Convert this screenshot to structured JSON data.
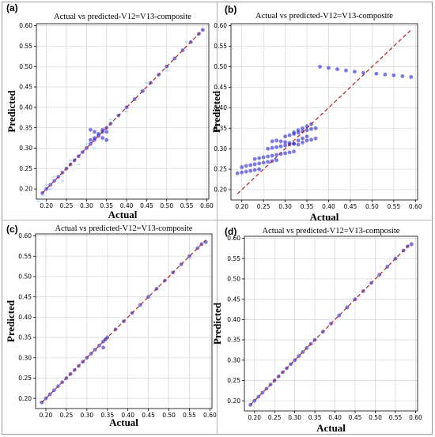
{
  "chart_data": [
    {
      "panel_label": "(a)",
      "type": "scatter",
      "title": "Actual vs predicted-V12=V13-composite",
      "xlabel": "Actual",
      "ylabel": "Predicted",
      "xticks": [
        0.2,
        0.25,
        0.3,
        0.35,
        0.4,
        0.45,
        0.5,
        0.55,
        0.6
      ],
      "yticks": [
        0.2,
        0.25,
        0.3,
        0.35,
        0.4,
        0.45,
        0.5,
        0.55,
        0.6
      ],
      "xlim": [
        0.175,
        0.605
      ],
      "ylim": [
        0.175,
        0.605
      ],
      "grid": true,
      "ideal_line": [
        [
          0.19,
          0.19
        ],
        [
          0.59,
          0.59
        ]
      ],
      "colors": {
        "points": "#2020d8",
        "scatter_light": "#88c8ff",
        "ideal": "#b22222"
      },
      "series": [
        {
          "x": [
            0.19,
            0.2,
            0.21,
            0.22,
            0.23,
            0.24,
            0.25,
            0.26,
            0.27,
            0.28,
            0.29,
            0.3,
            0.31,
            0.32,
            0.33,
            0.34,
            0.35,
            0.36,
            0.38,
            0.4,
            0.42,
            0.44,
            0.46,
            0.48,
            0.5,
            0.52,
            0.54,
            0.56,
            0.58,
            0.59,
            0.31,
            0.32,
            0.33,
            0.34,
            0.35,
            0.35,
            0.34,
            0.32,
            0.31
          ],
          "y": [
            0.19,
            0.2,
            0.21,
            0.22,
            0.23,
            0.24,
            0.25,
            0.26,
            0.27,
            0.28,
            0.29,
            0.3,
            0.31,
            0.32,
            0.33,
            0.34,
            0.35,
            0.36,
            0.38,
            0.4,
            0.42,
            0.44,
            0.46,
            0.48,
            0.5,
            0.52,
            0.54,
            0.56,
            0.58,
            0.59,
            0.345,
            0.34,
            0.335,
            0.325,
            0.32,
            0.34,
            0.345,
            0.325,
            0.32
          ]
        },
        {
          "x": [
            0.18,
            0.19,
            0.2,
            0.21,
            0.22,
            0.24,
            0.26,
            0.28,
            0.3,
            0.32,
            0.36,
            0.4,
            0.45,
            0.5,
            0.55
          ],
          "y": [
            0.17,
            0.185,
            0.21,
            0.2,
            0.23,
            0.22,
            0.27,
            0.26,
            0.31,
            0.3,
            0.37,
            0.39,
            0.46,
            0.49,
            0.56
          ]
        }
      ]
    },
    {
      "panel_label": "(b)",
      "type": "scatter",
      "title": "Actual vs predicted-V12=V13-composite",
      "xlabel": "Actual",
      "ylabel": "Predicted",
      "xticks": [
        0.2,
        0.25,
        0.3,
        0.35,
        0.4,
        0.45,
        0.5,
        0.55,
        0.6
      ],
      "yticks": [
        0.2,
        0.25,
        0.3,
        0.35,
        0.4,
        0.45,
        0.5,
        0.55,
        0.6
      ],
      "xlim": [
        0.175,
        0.605
      ],
      "ylim": [
        0.175,
        0.605
      ],
      "grid": true,
      "ideal_line": [
        [
          0.19,
          0.19
        ],
        [
          0.59,
          0.59
        ]
      ],
      "colors": {
        "points": "#2020d8",
        "ideal": "#b22222"
      },
      "series": [
        {
          "x": [
            0.19,
            0.2,
            0.21,
            0.22,
            0.23,
            0.24,
            0.2,
            0.21,
            0.22,
            0.23,
            0.24,
            0.25,
            0.26,
            0.27,
            0.28,
            0.23,
            0.24,
            0.25,
            0.26,
            0.27,
            0.28,
            0.29,
            0.3,
            0.31,
            0.32,
            0.26,
            0.27,
            0.28,
            0.29,
            0.3,
            0.31,
            0.32,
            0.27,
            0.28,
            0.29,
            0.3,
            0.31,
            0.32,
            0.33,
            0.34,
            0.35,
            0.36,
            0.37,
            0.3,
            0.31,
            0.32,
            0.33,
            0.34,
            0.35,
            0.36,
            0.37,
            0.32,
            0.33,
            0.34,
            0.35,
            0.36,
            0.33,
            0.34,
            0.35,
            0.38,
            0.4,
            0.42,
            0.44,
            0.46,
            0.48,
            0.51,
            0.53,
            0.55,
            0.57,
            0.59
          ],
          "y": [
            0.24,
            0.242,
            0.244,
            0.246,
            0.248,
            0.25,
            0.255,
            0.258,
            0.26,
            0.262,
            0.264,
            0.266,
            0.268,
            0.27,
            0.272,
            0.275,
            0.277,
            0.279,
            0.281,
            0.283,
            0.285,
            0.287,
            0.289,
            0.291,
            0.293,
            0.3,
            0.302,
            0.304,
            0.306,
            0.308,
            0.31,
            0.312,
            0.318,
            0.32,
            0.318,
            0.316,
            0.314,
            0.312,
            0.31,
            0.315,
            0.32,
            0.322,
            0.325,
            0.33,
            0.333,
            0.336,
            0.339,
            0.342,
            0.345,
            0.348,
            0.35,
            0.34,
            0.345,
            0.35,
            0.355,
            0.36,
            0.32,
            0.325,
            0.33,
            0.5,
            0.497,
            0.494,
            0.491,
            0.488,
            0.485,
            0.483,
            0.481,
            0.479,
            0.477,
            0.475
          ]
        }
      ]
    },
    {
      "panel_label": "(c)",
      "type": "scatter",
      "title": "Actual vs predicted-V12=V13-composite",
      "xlabel": "Actual",
      "ylabel": "Predicted",
      "xticks": [
        0.2,
        0.25,
        0.3,
        0.35,
        0.4,
        0.45,
        0.5,
        0.55,
        0.6
      ],
      "yticks": [
        0.2,
        0.25,
        0.3,
        0.35,
        0.4,
        0.45,
        0.5,
        0.55,
        0.6
      ],
      "xlim": [
        0.175,
        0.605
      ],
      "ylim": [
        0.175,
        0.605
      ],
      "grid": true,
      "ideal_line": [
        [
          0.19,
          0.19
        ],
        [
          0.59,
          0.59
        ]
      ],
      "colors": {
        "points": "#2020d8",
        "ideal": "#b22222"
      },
      "series": [
        {
          "x": [
            0.19,
            0.2,
            0.21,
            0.22,
            0.23,
            0.24,
            0.25,
            0.26,
            0.27,
            0.28,
            0.29,
            0.3,
            0.31,
            0.32,
            0.33,
            0.34,
            0.345,
            0.35,
            0.37,
            0.39,
            0.41,
            0.43,
            0.45,
            0.47,
            0.49,
            0.51,
            0.53,
            0.55,
            0.57,
            0.58,
            0.59,
            0.34
          ],
          "y": [
            0.19,
            0.2,
            0.21,
            0.22,
            0.23,
            0.24,
            0.25,
            0.26,
            0.27,
            0.28,
            0.29,
            0.3,
            0.31,
            0.32,
            0.33,
            0.34,
            0.345,
            0.35,
            0.37,
            0.39,
            0.41,
            0.43,
            0.45,
            0.47,
            0.49,
            0.51,
            0.53,
            0.55,
            0.57,
            0.58,
            0.585,
            0.325
          ]
        }
      ]
    },
    {
      "panel_label": "(d)",
      "type": "scatter",
      "title": "Actual vs predicted-V12=V13-composite",
      "xlabel": "Actual",
      "ylabel": "Predicted",
      "xticks": [
        0.2,
        0.25,
        0.3,
        0.35,
        0.4,
        0.45,
        0.5,
        0.55,
        0.6
      ],
      "yticks": [
        0.2,
        0.25,
        0.3,
        0.35,
        0.4,
        0.45,
        0.5,
        0.55,
        0.6
      ],
      "xlim": [
        0.175,
        0.605
      ],
      "ylim": [
        0.175,
        0.605
      ],
      "grid": true,
      "ideal_line": [
        [
          0.19,
          0.19
        ],
        [
          0.59,
          0.59
        ]
      ],
      "colors": {
        "points": "#2020d8",
        "ideal": "#b22222"
      },
      "series": [
        {
          "x": [
            0.19,
            0.2,
            0.21,
            0.22,
            0.23,
            0.24,
            0.25,
            0.26,
            0.27,
            0.28,
            0.29,
            0.3,
            0.31,
            0.32,
            0.33,
            0.34,
            0.35,
            0.37,
            0.39,
            0.41,
            0.43,
            0.45,
            0.47,
            0.49,
            0.51,
            0.53,
            0.55,
            0.57,
            0.58,
            0.59
          ],
          "y": [
            0.19,
            0.2,
            0.21,
            0.22,
            0.23,
            0.24,
            0.25,
            0.26,
            0.27,
            0.28,
            0.29,
            0.3,
            0.31,
            0.32,
            0.33,
            0.34,
            0.35,
            0.37,
            0.39,
            0.41,
            0.43,
            0.45,
            0.47,
            0.49,
            0.51,
            0.53,
            0.55,
            0.57,
            0.58,
            0.585
          ]
        }
      ]
    }
  ]
}
